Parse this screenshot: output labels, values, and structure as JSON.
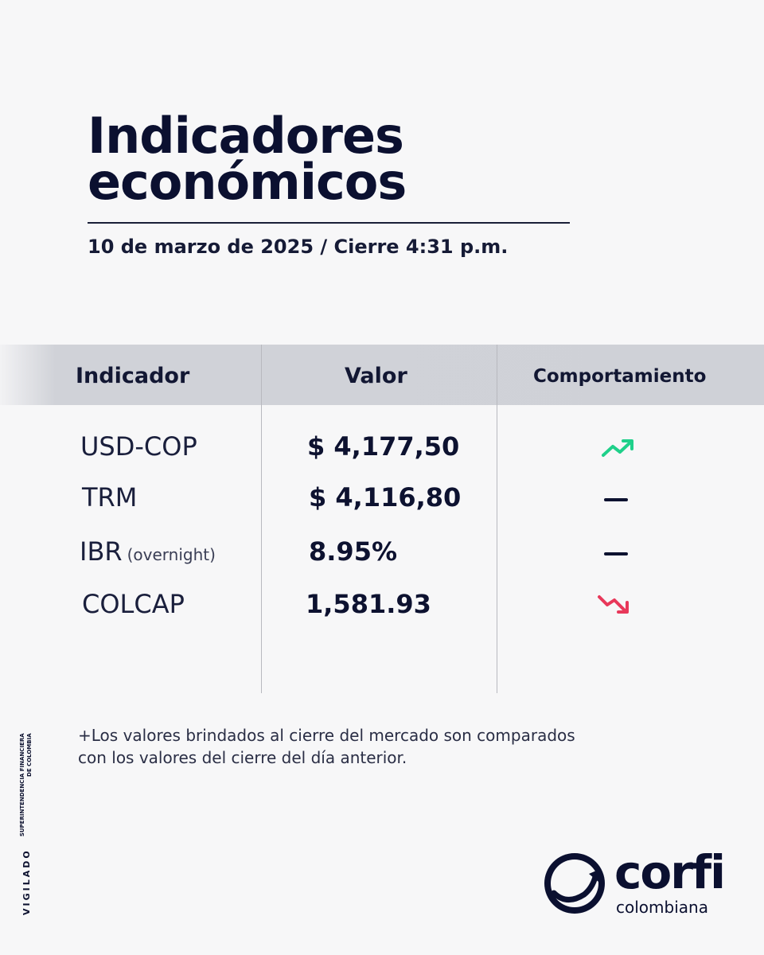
{
  "header": {
    "title_line1": "Indicadores",
    "title_line2": "económicos",
    "subtitle": "10 de marzo de 2025 / Cierre 4:31 p.m."
  },
  "table": {
    "columns": [
      "Indicador",
      "Valor",
      "Comportamiento"
    ],
    "rows": [
      {
        "name": "USD-COP",
        "note": "",
        "value": "$ 4,177,50",
        "trend": "up-icon"
      },
      {
        "name": "TRM",
        "note": "",
        "value": "$ 4,116,80",
        "trend": "flat-icon"
      },
      {
        "name": "IBR",
        "note": "(overnight)",
        "value": "8.95%",
        "trend": "flat-icon"
      },
      {
        "name": "COLCAP",
        "note": "",
        "value": "1,581.93",
        "trend": "down-icon"
      }
    ]
  },
  "footnote": {
    "line1": "+Los valores brindados al cierre del mercado son comparados",
    "line2": "con los valores del cierre del día anterior."
  },
  "vigilado": {
    "label": "VIGILADO",
    "entity_line1": "SUPERINTENDENCIA FINANCIERA",
    "entity_line2": "DE COLOMBIA"
  },
  "logo": {
    "word": "corfi",
    "sub": "colombiana"
  },
  "colors": {
    "navy": "#0d1230",
    "up": "#1fd08a",
    "down": "#e8385a",
    "header_band": "#cfd1d7"
  }
}
